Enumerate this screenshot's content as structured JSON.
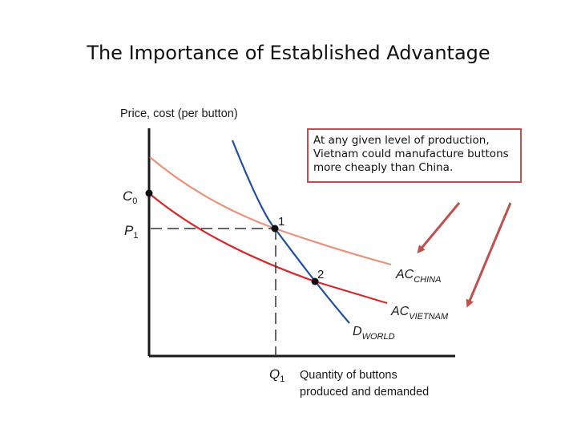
{
  "slide": {
    "title": "The Importance of Established Advantage"
  },
  "callout": {
    "text": "At any given level of production, Vietnam could manufacture buttons more cheaply than China."
  },
  "chart_data": {
    "type": "line",
    "ylabel": "Price, cost (per button)",
    "xlabel_line1": "Quantity of buttons",
    "xlabel_line2": "produced and demanded",
    "y_ticks": [
      {
        "main": "C",
        "sub": "0"
      },
      {
        "main": "P",
        "sub": "1"
      }
    ],
    "x_ticks": [
      {
        "main": "Q",
        "sub": "1"
      }
    ],
    "series": [
      {
        "name": "AC",
        "sub": "CHINA",
        "color": "#e8937a"
      },
      {
        "name": "AC",
        "sub": "VIETNAM",
        "color": "#d9252a"
      },
      {
        "name": "D",
        "sub": "WORLD",
        "color": "#1f4fa0"
      }
    ],
    "points": [
      {
        "label": "1"
      },
      {
        "label": "2"
      }
    ],
    "grid": false
  },
  "colors": {
    "callout_border": "#c0504d",
    "arrow": "#c0504d",
    "axis": "#1a1a1a"
  }
}
